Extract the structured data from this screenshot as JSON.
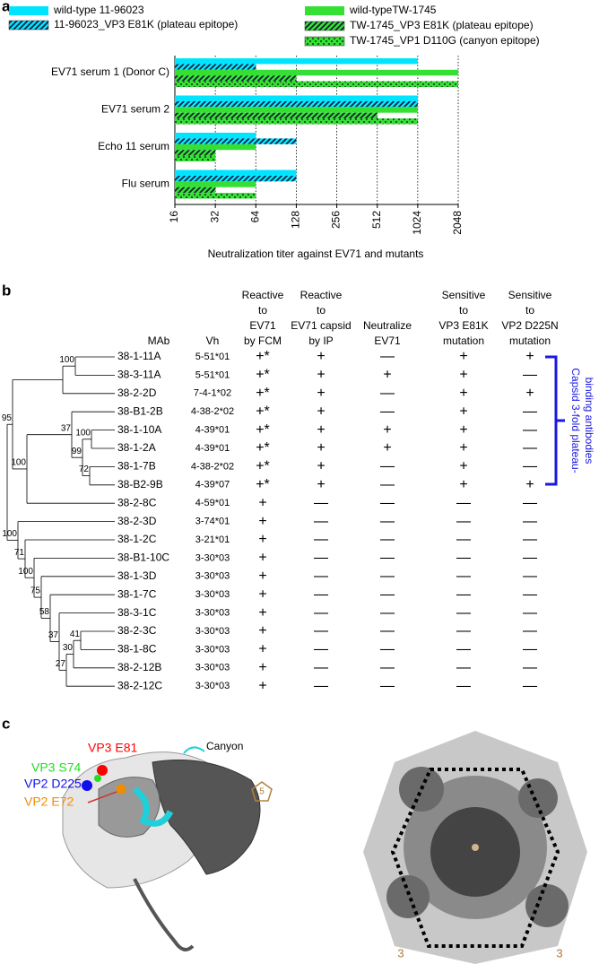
{
  "panel_labels": [
    "a",
    "b",
    "c"
  ],
  "chart_data": {
    "type": "bar",
    "orientation": "horizontal",
    "log_base": 2,
    "xlabel": "Neutralization titer against EV71 and mutants",
    "categories": [
      "EV71 serum 1 (Donor C)",
      "EV71 serum 2",
      "Echo 11 serum",
      "Flu serum"
    ],
    "series": [
      {
        "name": "wild-type 11-96023",
        "color": "#00e5ff",
        "pattern": "solid",
        "values": [
          1024,
          1024,
          64,
          128
        ]
      },
      {
        "name": "11-96023_VP3 E81K (plateau epitope)",
        "color": "#00e5ff",
        "pattern": "hatch",
        "values": [
          64,
          1024,
          128,
          128
        ]
      },
      {
        "name": "wild-typeTW-1745",
        "color": "#33e033",
        "pattern": "solid",
        "values": [
          2048,
          1024,
          64,
          64
        ]
      },
      {
        "name": "TW-1745_VP3 E81K (plateau epitope)",
        "color": "#33e033",
        "pattern": "hatch",
        "values": [
          128,
          512,
          32,
          32
        ]
      },
      {
        "name": "TW-1745_VP1 D110G (canyon epitope)",
        "color": "#33e033",
        "pattern": "check",
        "values": [
          2048,
          1024,
          32,
          64
        ]
      }
    ],
    "xlim": [
      16,
      2048
    ],
    "xticks": [
      16,
      32,
      64,
      128,
      256,
      512,
      1024,
      2048
    ],
    "grid": true
  },
  "table": {
    "columns": [
      [
        "MAb"
      ],
      [
        "Vh"
      ],
      [
        "Reactive",
        "to",
        "EV71",
        "by FCM"
      ],
      [
        "Reactive",
        "to",
        "EV71 capsid",
        "by IP"
      ],
      [
        "Neutralize",
        "EV71"
      ],
      [
        "Sensitive",
        "to",
        "VP3 E81K",
        "mutation"
      ],
      [
        "Sensitive",
        "to",
        "VP2 D225N",
        "mutation"
      ]
    ],
    "rows": [
      [
        "38-1-11A",
        "5-51*01",
        "+*",
        "+",
        "—",
        "+",
        "+"
      ],
      [
        "38-3-11A",
        "5-51*01",
        "+*",
        "+",
        "+",
        "+",
        "—"
      ],
      [
        "38-2-2D",
        "7-4-1*02",
        "+*",
        "+",
        "—",
        "+",
        "+"
      ],
      [
        "38-B1-2B",
        "4-38-2*02",
        "+*",
        "+",
        "—",
        "+",
        "—"
      ],
      [
        "38-1-10A",
        "4-39*01",
        "+*",
        "+",
        "+",
        "+",
        "—"
      ],
      [
        "38-1-2A",
        "4-39*01",
        "+*",
        "+",
        "+",
        "+",
        "—"
      ],
      [
        "38-1-7B",
        "4-38-2*02",
        "+*",
        "+",
        "—",
        "+",
        "—"
      ],
      [
        "38-B2-9B",
        "4-39*07",
        "+*",
        "+",
        "—",
        "+",
        "+"
      ],
      [
        "38-2-8C",
        "4-59*01",
        "+",
        "—",
        "—",
        "—",
        "—"
      ],
      [
        "38-2-3D",
        "3-74*01",
        "+",
        "—",
        "—",
        "—",
        "—"
      ],
      [
        "38-1-2C",
        "3-21*01",
        "+",
        "—",
        "—",
        "—",
        "—"
      ],
      [
        "38-B1-10C",
        "3-30*03",
        "+",
        "—",
        "—",
        "—",
        "—"
      ],
      [
        "38-1-3D",
        "3-30*03",
        "+",
        "—",
        "—",
        "—",
        "—"
      ],
      [
        "38-1-7C",
        "3-30*03",
        "+",
        "—",
        "—",
        "—",
        "—"
      ],
      [
        "38-3-1C",
        "3-30*03",
        "+",
        "—",
        "—",
        "—",
        "—"
      ],
      [
        "38-2-3C",
        "3-30*03",
        "+",
        "—",
        "—",
        "—",
        "—"
      ],
      [
        "38-1-8C",
        "3-30*03",
        "+",
        "—",
        "—",
        "—",
        "—"
      ],
      [
        "38-2-12B",
        "3-30*03",
        "+",
        "—",
        "—",
        "—",
        "—"
      ],
      [
        "38-2-12C",
        "3-30*03",
        "+",
        "—",
        "—",
        "—",
        "—"
      ]
    ],
    "bracket_label": [
      "Capsid 3-fold plateau-",
      "binding antibodies"
    ]
  },
  "tree": {
    "bootstrap": [
      100,
      95,
      37,
      99,
      100,
      72,
      100,
      100,
      71,
      100,
      75,
      58,
      41,
      30,
      37,
      27
    ]
  },
  "panel_c": {
    "residues": [
      {
        "text": "VP3 E81",
        "color": "#ff0000"
      },
      {
        "text": "VP3 S74",
        "color": "#22dd22"
      },
      {
        "text": "VP2 D225",
        "color": "#1010ee"
      },
      {
        "text": "VP2 E72",
        "color": "#f08c00"
      }
    ],
    "canyon": "Canyon",
    "fivefold": "5",
    "threefold": [
      "3",
      "3"
    ]
  }
}
